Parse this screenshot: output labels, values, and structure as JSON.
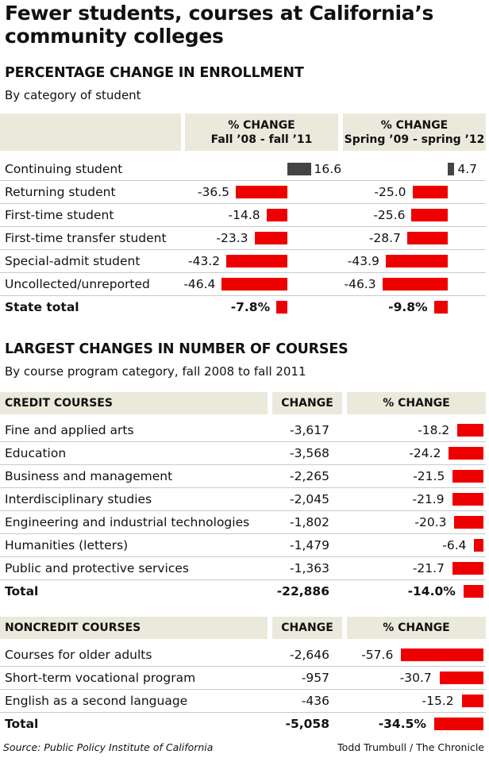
{
  "title": "Fewer students, courses at California’s community colleges",
  "enrollment": {
    "heading": "PERCENTAGE CHANGE IN ENROLLMENT",
    "subheading": "By category of student",
    "col1": [
      "% CHANGE",
      "Fall ’08 - fall ’11"
    ],
    "col2": [
      "% CHANGE",
      "Spring ’09 - spring ’12"
    ]
  },
  "courses": {
    "heading": "LARGEST CHANGES IN NUMBER OF COURSES",
    "subheading": "By course program category, fall 2008 to fall 2011",
    "credit_header": "CREDIT COURSES",
    "noncredit_header": "NONCREDIT COURSES",
    "change_header": "CHANGE",
    "pct_header": "% CHANGE"
  },
  "source": "Source: Public Policy Institute of California",
  "credit": "Todd Trumbull / The Chronicle",
  "colors": {
    "negative": "#ee0000",
    "positive": "#444444",
    "header_band": "#ebe9dc"
  },
  "chart_data": [
    {
      "type": "bar",
      "title": "PERCENTAGE CHANGE IN ENROLLMENT",
      "categories": [
        "Continuing student",
        "Returning student",
        "First-time student",
        "First-time transfer student",
        "Special-admit student",
        "Uncollected/unreported",
        "State total"
      ],
      "series": [
        {
          "name": "Fall ’08 - fall ’11",
          "values": [
            16.6,
            -36.5,
            -14.8,
            -23.3,
            -43.2,
            -46.4,
            -7.8
          ],
          "labels": [
            "16.6",
            "-36.5",
            "-14.8",
            "-23.3",
            "-43.2",
            "-46.4",
            "-7.8%"
          ]
        },
        {
          "name": "Spring ’09 - spring ’12",
          "values": [
            4.7,
            -25.0,
            -25.6,
            -28.7,
            -43.9,
            -46.3,
            -9.8
          ],
          "labels": [
            "4.7",
            "-25.0",
            "-25.6",
            "-28.7",
            "-43.9",
            "-46.3",
            "-9.8%"
          ]
        }
      ]
    },
    {
      "type": "table",
      "title": "CREDIT COURSES",
      "categories": [
        "Fine and applied arts",
        "Education",
        "Business and management",
        "Interdisciplinary studies",
        "Engineering and industrial technologies",
        "Humanities (letters)",
        "Public and protective services",
        "Total"
      ],
      "change": [
        "-3,617",
        "-3,568",
        "-2,265",
        "-2,045",
        "-1,802",
        "-1,479",
        "-1,363",
        "-22,886"
      ],
      "pct_values": [
        -18.2,
        -24.2,
        -21.5,
        -21.9,
        -20.3,
        -6.4,
        -21.7,
        -14.0
      ],
      "pct_labels": [
        "-18.2",
        "-24.2",
        "-21.5",
        "-21.9",
        "-20.3",
        "-6.4",
        "-21.7",
        "-14.0%"
      ]
    },
    {
      "type": "table",
      "title": "NONCREDIT COURSES",
      "categories": [
        "Courses for older adults",
        "Short-term vocational program",
        "English as a second language",
        "Total"
      ],
      "change": [
        "-2,646",
        "-957",
        "-436",
        "-5,058"
      ],
      "pct_values": [
        -57.6,
        -30.7,
        -15.2,
        -34.5
      ],
      "pct_labels": [
        "-57.6",
        "-30.7",
        "-15.2",
        "-34.5%"
      ]
    }
  ]
}
